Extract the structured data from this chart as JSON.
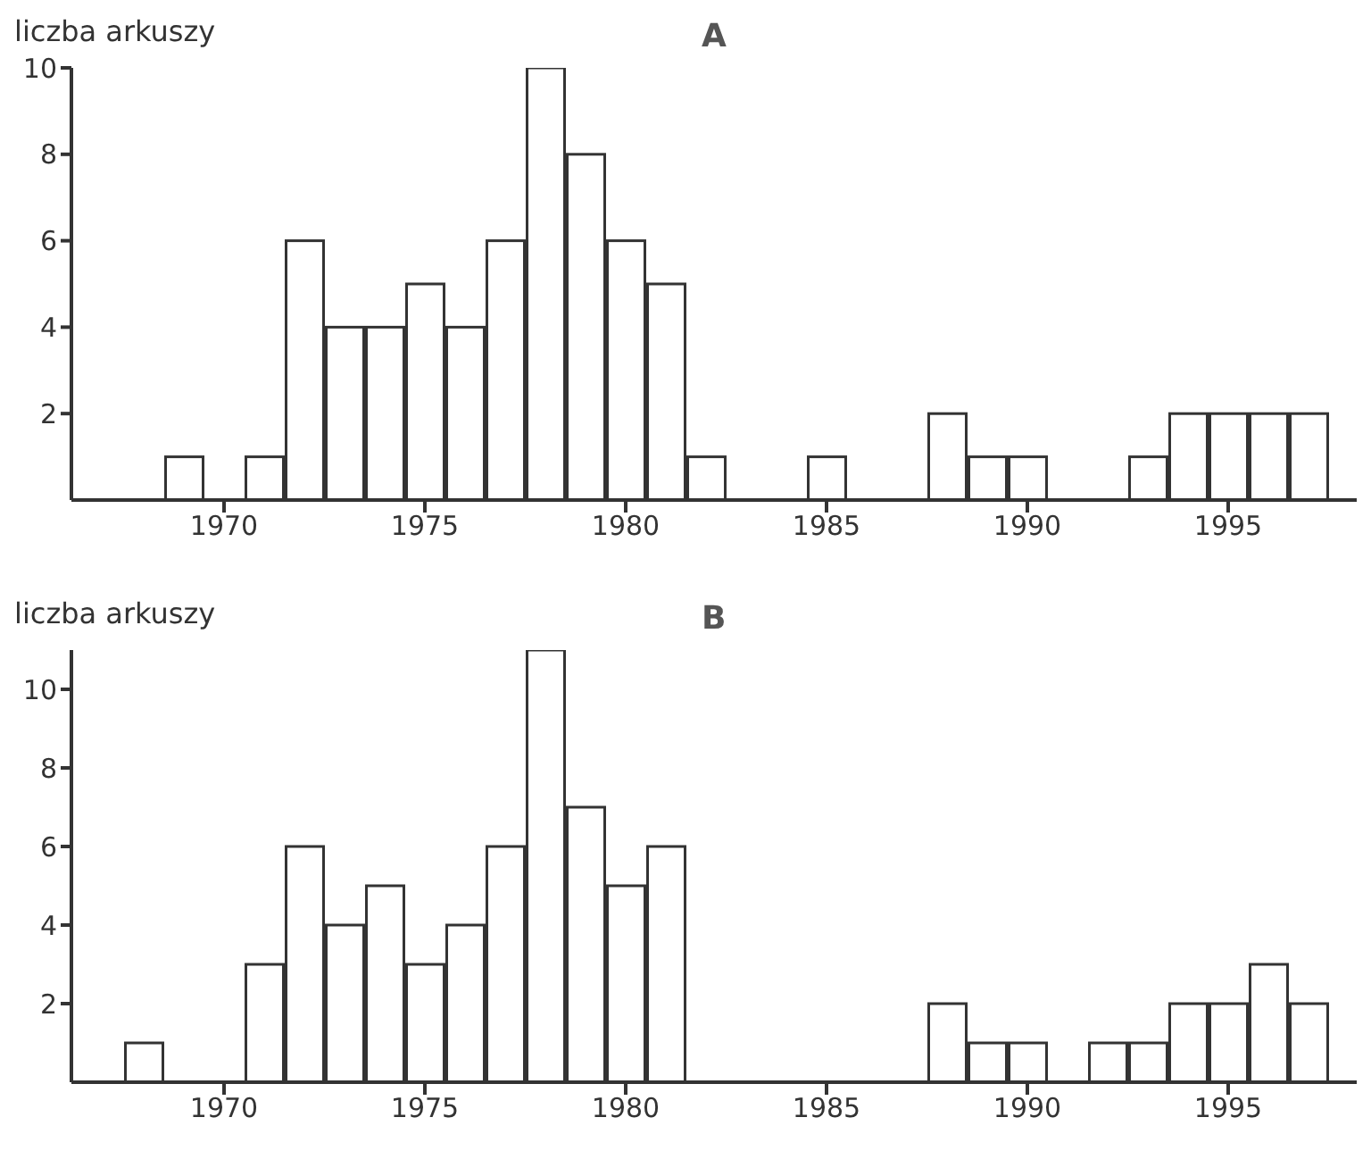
{
  "chart_data": [
    {
      "type": "histogram",
      "title": "A",
      "ylabel": "liczba arkuszy",
      "color": "#ffffff",
      "bins": [
        1967.5,
        1968.5,
        1969.5,
        1970.5,
        1971.5,
        1972.5,
        1973.5,
        1974.5,
        1975.5,
        1976.5,
        1977.5,
        1978.5,
        1979.5,
        1980.5,
        1981.5,
        1982.5,
        1983.5,
        1984.5,
        1985.5,
        1986.5,
        1987.5,
        1988.5,
        1989.5,
        1990.5,
        1991.5,
        1992.5,
        1993.5,
        1994.5,
        1995.5,
        1996.5,
        1997.5
      ],
      "values": [
        0,
        1,
        0,
        1,
        6,
        4,
        4,
        5,
        4,
        6,
        10,
        8,
        6,
        5,
        1,
        0,
        0,
        1,
        0,
        0,
        2,
        1,
        1,
        0,
        0,
        1,
        2,
        2,
        2,
        2
      ],
      "xlim": [
        1966.2,
        1998.2
      ],
      "xticks": [
        1970,
        1975,
        1980,
        1985,
        1990,
        1995
      ],
      "ylim": [
        0,
        10
      ],
      "yticks": [
        2,
        4,
        6,
        8,
        10
      ]
    },
    {
      "type": "histogram",
      "title": "B",
      "ylabel": "liczba arkuszy",
      "color": "#ffffff",
      "bins": [
        1967.5,
        1968.5,
        1969.5,
        1970.5,
        1971.5,
        1972.5,
        1973.5,
        1974.5,
        1975.5,
        1976.5,
        1977.5,
        1978.5,
        1979.5,
        1980.5,
        1981.5,
        1982.5,
        1983.5,
        1984.5,
        1985.5,
        1986.5,
        1987.5,
        1988.5,
        1989.5,
        1990.5,
        1991.5,
        1992.5,
        1993.5,
        1994.5,
        1995.5,
        1996.5,
        1997.5
      ],
      "values": [
        1,
        0,
        0,
        3,
        6,
        4,
        5,
        3,
        4,
        6,
        11,
        7,
        5,
        6,
        0,
        0,
        0,
        0,
        0,
        0,
        2,
        1,
        1,
        0,
        1,
        1,
        2,
        2,
        3,
        2
      ],
      "xlim": [
        1966.2,
        1998.2
      ],
      "xticks": [
        1970,
        1975,
        1980,
        1985,
        1990,
        1995
      ],
      "ylim": [
        0,
        11
      ],
      "yticks": [
        2,
        4,
        6,
        8,
        10
      ]
    }
  ]
}
